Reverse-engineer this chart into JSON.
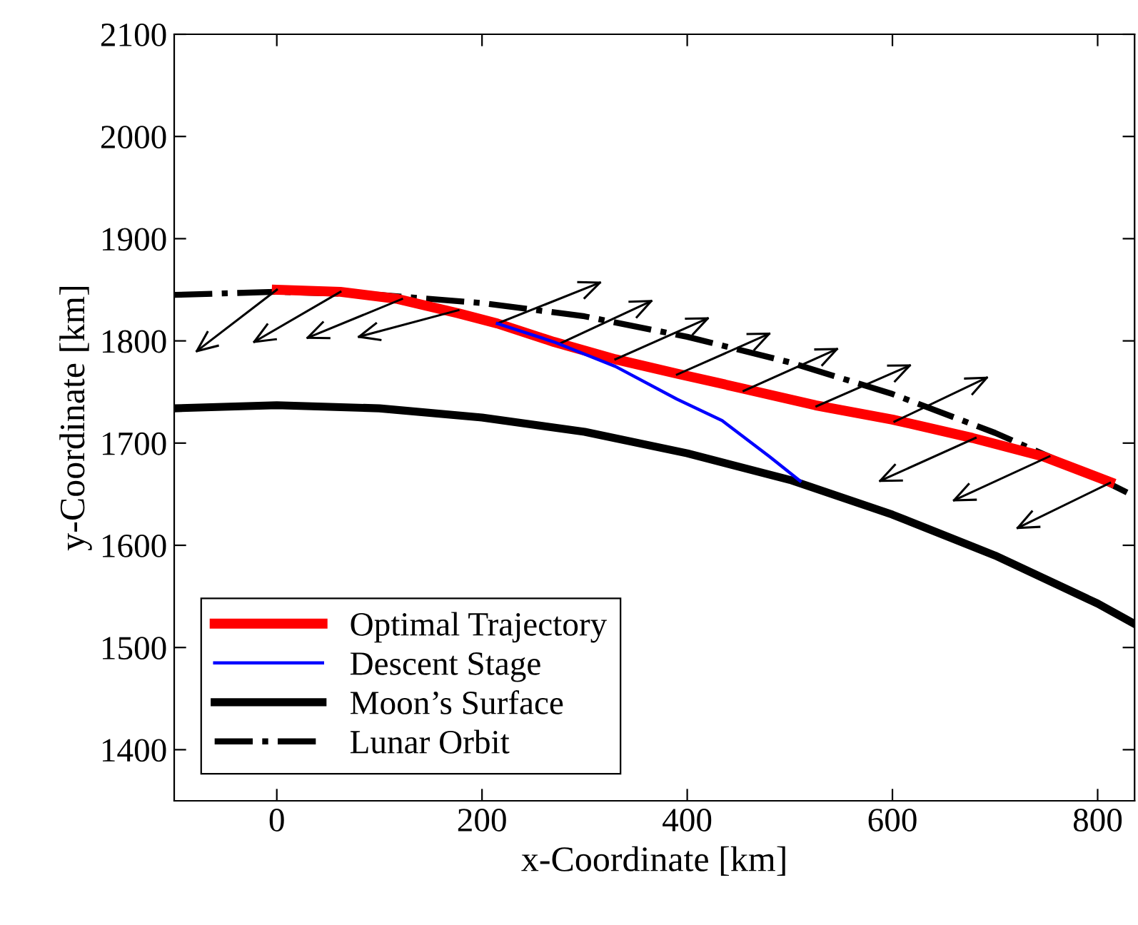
{
  "chart_data": {
    "type": "line",
    "xlabel": "x-Coordinate [km]",
    "ylabel": "y-Coordinate [km]",
    "xlim": [
      -100,
      836
    ],
    "ylim": [
      1350,
      2100
    ],
    "xticks": [
      0,
      200,
      400,
      600,
      800
    ],
    "yticks": [
      1400,
      1500,
      1600,
      1700,
      1800,
      1900,
      2000,
      2100
    ],
    "grid": false,
    "legend": "bottom left",
    "series": [
      {
        "name": "Optimal Trajectory",
        "color": "#ff0000",
        "line_style": "solid",
        "x": [
          0,
          62,
          118,
          177,
          215,
          270,
          330,
          390,
          456,
          525,
          600,
          678,
          747,
          812
        ],
        "values": [
          1850,
          1848,
          1841,
          1827,
          1817,
          1799,
          1782,
          1768,
          1753,
          1737,
          1723,
          1705,
          1687,
          1662
        ]
      },
      {
        "name": "Descent Stage",
        "color": "#0000ff",
        "line_style": "solid",
        "x": [
          215,
          270,
          330,
          390,
          434,
          480,
          510
        ],
        "values": [
          1817,
          1799,
          1775,
          1743,
          1722,
          1687,
          1663
        ]
      },
      {
        "name": "Moon’s Surface",
        "color": "#000000",
        "line_style": "solid",
        "x": [
          -100,
          0,
          100,
          200,
          300,
          400,
          500,
          600,
          700,
          800,
          836
        ],
        "values": [
          1734,
          1737,
          1734,
          1725,
          1711,
          1690,
          1664,
          1630,
          1590,
          1543,
          1523
        ]
      },
      {
        "name": "Lunar Orbit",
        "color": "#000000",
        "line_style": "dashdot",
        "x": [
          -100,
          0,
          100,
          200,
          300,
          400,
          500,
          600,
          700,
          800,
          836
        ],
        "values": [
          1845,
          1848,
          1845,
          1837,
          1824,
          1804,
          1779,
          1748,
          1710,
          1666,
          1648
        ]
      },
      {
        "color": "#000000",
        "x": [
          0,
          -78
        ],
        "values": [
          1850,
          1790
        ]
      },
      {
        "color": "#000000",
        "x": [
          62,
          -22
        ],
        "values": [
          1848,
          1799
        ]
      },
      {
        "color": "#000000",
        "x": [
          122,
          30
        ],
        "values": [
          1841,
          1803
        ]
      },
      {
        "color": "#000000",
        "x": [
          177,
          80
        ],
        "values": [
          1830,
          1804
        ]
      },
      {
        "color": "#000000",
        "x": [
          215,
          315
        ],
        "values": [
          1817,
          1857
        ]
      },
      {
        "color": "#000000",
        "x": [
          275,
          365
        ],
        "values": [
          1797,
          1839
        ]
      },
      {
        "color": "#000000",
        "x": [
          330,
          420
        ],
        "values": [
          1782,
          1822
        ]
      },
      {
        "color": "#000000",
        "x": [
          390,
          480
        ],
        "values": [
          1767,
          1807
        ]
      },
      {
        "color": "#000000",
        "x": [
          455,
          546
        ],
        "values": [
          1751,
          1792
        ]
      },
      {
        "color": "#000000",
        "x": [
          526,
          617
        ],
        "values": [
          1736,
          1776
        ]
      },
      {
        "color": "#000000",
        "x": [
          602,
          692
        ],
        "values": [
          1721,
          1764
        ]
      },
      {
        "color": "#000000",
        "x": [
          681,
          588
        ],
        "values": [
          1705,
          1663
        ]
      },
      {
        "color": "#000000",
        "x": [
          753,
          660
        ],
        "values": [
          1687,
          1644
        ]
      },
      {
        "color": "#000000",
        "x": [
          812,
          722
        ],
        "values": [
          1661,
          1617
        ]
      }
    ]
  }
}
